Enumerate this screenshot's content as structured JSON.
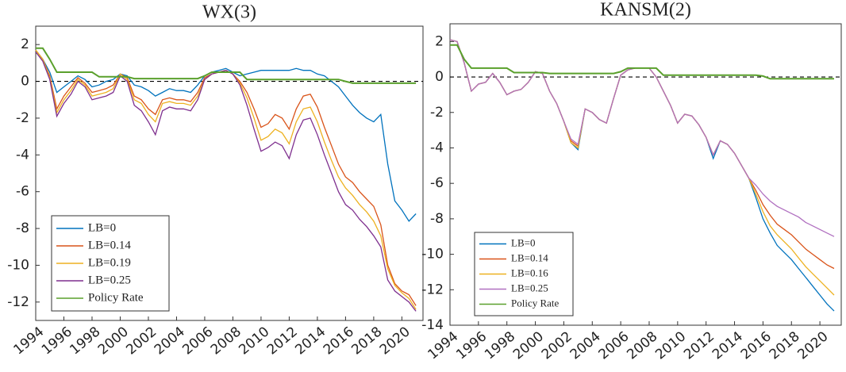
{
  "chart_data": [
    {
      "type": "line",
      "title": "WX(3)",
      "x": [
        1994,
        1994.5,
        1995,
        1995.5,
        1996,
        1996.5,
        1997,
        1997.5,
        1998,
        1998.5,
        1999,
        1999.5,
        2000,
        2000.5,
        2001,
        2001.5,
        2002,
        2002.5,
        2003,
        2003.5,
        2004,
        2004.5,
        2005,
        2005.5,
        2006,
        2006.5,
        2007,
        2007.5,
        2008,
        2008.5,
        2009,
        2009.5,
        2010,
        2010.5,
        2011,
        2011.5,
        2012,
        2012.5,
        2013,
        2013.5,
        2014,
        2014.5,
        2015,
        2015.5,
        2016,
        2016.5,
        2017,
        2017.5,
        2018,
        2018.5,
        2019,
        2019.5,
        2020,
        2020.5,
        2021
      ],
      "xlim": [
        1994,
        2021.5
      ],
      "xticks": [
        1994,
        1996,
        1998,
        2000,
        2002,
        2004,
        2006,
        2008,
        2010,
        2012,
        2014,
        2016,
        2018,
        2020
      ],
      "ylim": [
        -13,
        3
      ],
      "yticks": [
        -12,
        -10,
        -8,
        -6,
        -4,
        -2,
        0,
        2
      ],
      "legend": "lower left",
      "series": [
        {
          "name": "LB=0",
          "color": "#0072bd",
          "values": [
            1.7,
            1.2,
            0.5,
            -0.6,
            -0.3,
            0.0,
            0.3,
            0.1,
            -0.3,
            -0.2,
            0.0,
            0.1,
            0.4,
            0.3,
            -0.2,
            -0.3,
            -0.5,
            -0.8,
            -0.6,
            -0.4,
            -0.5,
            -0.5,
            -0.6,
            -0.2,
            0.3,
            0.5,
            0.6,
            0.7,
            0.5,
            0.3,
            0.4,
            0.5,
            0.6,
            0.6,
            0.6,
            0.6,
            0.6,
            0.7,
            0.6,
            0.6,
            0.4,
            0.3,
            0.0,
            -0.3,
            -0.8,
            -1.3,
            -1.7,
            -2.0,
            -2.2,
            -1.8,
            -4.5,
            -6.5,
            -7.0,
            -7.6,
            -7.2
          ]
        },
        {
          "name": "LB=0.14",
          "color": "#d95319",
          "values": [
            1.7,
            1.2,
            0.3,
            -1.5,
            -0.8,
            -0.3,
            0.2,
            -0.1,
            -0.6,
            -0.5,
            -0.4,
            -0.2,
            0.4,
            0.2,
            -0.8,
            -1.0,
            -1.5,
            -1.8,
            -1.0,
            -0.9,
            -1.0,
            -1.0,
            -1.1,
            -0.6,
            0.2,
            0.4,
            0.5,
            0.6,
            0.4,
            0.0,
            -0.6,
            -1.5,
            -2.5,
            -2.3,
            -1.8,
            -2.0,
            -2.6,
            -1.5,
            -0.8,
            -0.7,
            -1.4,
            -2.5,
            -3.5,
            -4.5,
            -5.2,
            -5.5,
            -6.0,
            -6.4,
            -6.8,
            -7.8,
            -10.0,
            -11.0,
            -11.4,
            -11.6,
            -12.2
          ]
        },
        {
          "name": "LB=0.19",
          "color": "#edb120",
          "values": [
            1.7,
            1.2,
            0.2,
            -1.7,
            -1.0,
            -0.5,
            0.1,
            -0.2,
            -0.8,
            -0.7,
            -0.6,
            -0.4,
            0.4,
            0.1,
            -1.0,
            -1.2,
            -1.8,
            -2.2,
            -1.2,
            -1.1,
            -1.2,
            -1.2,
            -1.3,
            -0.8,
            0.1,
            0.4,
            0.5,
            0.6,
            0.4,
            -0.1,
            -0.9,
            -2.0,
            -3.2,
            -3.0,
            -2.6,
            -2.8,
            -3.4,
            -2.2,
            -1.5,
            -1.4,
            -2.2,
            -3.3,
            -4.3,
            -5.2,
            -5.8,
            -6.2,
            -6.7,
            -7.1,
            -7.6,
            -8.4,
            -10.2,
            -11.1,
            -11.5,
            -11.8,
            -12.4
          ]
        },
        {
          "name": "LB=0.25",
          "color": "#7e2f8e",
          "values": [
            1.6,
            1.1,
            0.1,
            -1.9,
            -1.2,
            -0.7,
            0.0,
            -0.3,
            -1.0,
            -0.9,
            -0.8,
            -0.6,
            0.3,
            0.0,
            -1.3,
            -1.6,
            -2.2,
            -2.9,
            -1.6,
            -1.4,
            -1.5,
            -1.5,
            -1.6,
            -1.0,
            0.1,
            0.4,
            0.5,
            0.6,
            0.4,
            -0.2,
            -1.3,
            -2.6,
            -3.8,
            -3.6,
            -3.3,
            -3.5,
            -4.2,
            -2.9,
            -2.1,
            -2.0,
            -2.9,
            -4.0,
            -5.0,
            -6.0,
            -6.7,
            -7.0,
            -7.5,
            -7.9,
            -8.4,
            -9.0,
            -10.8,
            -11.4,
            -11.7,
            -12.0,
            -12.5
          ]
        },
        {
          "name": "Policy Rate",
          "color": "#5aa02c",
          "values": [
            1.8,
            1.8,
            1.2,
            0.5,
            0.5,
            0.5,
            0.5,
            0.5,
            0.5,
            0.25,
            0.25,
            0.25,
            0.25,
            0.25,
            0.15,
            0.15,
            0.15,
            0.15,
            0.15,
            0.15,
            0.15,
            0.15,
            0.15,
            0.15,
            0.3,
            0.5,
            0.5,
            0.5,
            0.5,
            0.5,
            0.1,
            0.1,
            0.1,
            0.1,
            0.1,
            0.1,
            0.1,
            0.1,
            0.1,
            0.1,
            0.1,
            0.1,
            0.1,
            0.1,
            0.0,
            -0.1,
            -0.1,
            -0.1,
            -0.1,
            -0.1,
            -0.1,
            -0.1,
            -0.1,
            -0.1,
            -0.1
          ]
        }
      ]
    },
    {
      "type": "line",
      "title": "KANSM(2)",
      "x": [
        1994,
        1994.5,
        1995,
        1995.5,
        1996,
        1996.5,
        1997,
        1997.5,
        1998,
        1998.5,
        1999,
        1999.5,
        2000,
        2000.5,
        2001,
        2001.5,
        2002,
        2002.5,
        2003,
        2003.5,
        2004,
        2004.5,
        2005,
        2005.5,
        2006,
        2006.5,
        2007,
        2007.5,
        2008,
        2008.5,
        2009,
        2009.5,
        2010,
        2010.5,
        2011,
        2011.5,
        2012,
        2012.5,
        2013,
        2013.5,
        2014,
        2014.5,
        2015,
        2015.5,
        2016,
        2016.5,
        2017,
        2017.5,
        2018,
        2018.5,
        2019,
        2019.5,
        2020,
        2020.5,
        2021
      ],
      "xlim": [
        1994,
        2021.5
      ],
      "xticks": [
        1994,
        1996,
        1998,
        2000,
        2002,
        2004,
        2006,
        2008,
        2010,
        2012,
        2014,
        2016,
        2018,
        2020
      ],
      "ylim": [
        -14,
        3
      ],
      "yticks": [
        -14,
        -12,
        -10,
        -8,
        -6,
        -4,
        -2,
        0,
        2
      ],
      "legend": "lower left",
      "series": [
        {
          "name": "LB=0",
          "color": "#0072bd",
          "values": [
            2.1,
            2.0,
            0.8,
            -0.8,
            -0.4,
            -0.3,
            0.2,
            -0.3,
            -1.0,
            -0.8,
            -0.7,
            -0.3,
            0.3,
            0.2,
            -0.8,
            -1.5,
            -2.5,
            -3.7,
            -4.1,
            -1.8,
            -2.0,
            -2.4,
            -2.6,
            -1.2,
            0.1,
            0.4,
            0.5,
            0.5,
            0.5,
            0.0,
            -0.8,
            -1.6,
            -2.6,
            -2.1,
            -2.2,
            -2.7,
            -3.4,
            -4.6,
            -3.6,
            -3.8,
            -4.3,
            -5.0,
            -5.7,
            -6.8,
            -8.0,
            -8.8,
            -9.5,
            -9.9,
            -10.3,
            -10.8,
            -11.3,
            -11.8,
            -12.3,
            -12.8,
            -13.2
          ]
        },
        {
          "name": "LB=0.14",
          "color": "#d95319",
          "values": [
            2.1,
            2.0,
            0.8,
            -0.8,
            -0.4,
            -0.3,
            0.2,
            -0.3,
            -1.0,
            -0.8,
            -0.7,
            -0.3,
            0.3,
            0.2,
            -0.8,
            -1.5,
            -2.5,
            -3.6,
            -3.9,
            -1.8,
            -2.0,
            -2.4,
            -2.6,
            -1.2,
            0.1,
            0.4,
            0.5,
            0.5,
            0.5,
            0.0,
            -0.8,
            -1.6,
            -2.6,
            -2.1,
            -2.2,
            -2.7,
            -3.4,
            -4.4,
            -3.6,
            -3.8,
            -4.3,
            -5.0,
            -5.7,
            -6.4,
            -7.2,
            -7.8,
            -8.3,
            -8.6,
            -8.9,
            -9.3,
            -9.7,
            -10.0,
            -10.3,
            -10.6,
            -10.8
          ]
        },
        {
          "name": "LB=0.16",
          "color": "#edb120",
          "values": [
            2.1,
            2.0,
            0.8,
            -0.8,
            -0.4,
            -0.3,
            0.2,
            -0.3,
            -1.0,
            -0.8,
            -0.7,
            -0.3,
            0.3,
            0.2,
            -0.8,
            -1.5,
            -2.5,
            -3.7,
            -4.0,
            -1.8,
            -2.0,
            -2.4,
            -2.6,
            -1.2,
            0.1,
            0.4,
            0.5,
            0.5,
            0.5,
            0.0,
            -0.8,
            -1.6,
            -2.6,
            -2.1,
            -2.2,
            -2.7,
            -3.4,
            -4.4,
            -3.6,
            -3.8,
            -4.3,
            -5.0,
            -5.7,
            -6.6,
            -7.6,
            -8.4,
            -8.9,
            -9.3,
            -9.7,
            -10.2,
            -10.7,
            -11.1,
            -11.5,
            -11.9,
            -12.3
          ]
        },
        {
          "name": "LB=0.25",
          "color": "#b070c0",
          "values": [
            2.1,
            2.0,
            0.8,
            -0.8,
            -0.4,
            -0.3,
            0.2,
            -0.3,
            -1.0,
            -0.8,
            -0.7,
            -0.3,
            0.3,
            0.2,
            -0.8,
            -1.5,
            -2.5,
            -3.5,
            -3.8,
            -1.8,
            -2.0,
            -2.4,
            -2.6,
            -1.2,
            0.1,
            0.4,
            0.5,
            0.5,
            0.5,
            0.0,
            -0.8,
            -1.6,
            -2.6,
            -2.1,
            -2.2,
            -2.7,
            -3.4,
            -4.4,
            -3.6,
            -3.8,
            -4.3,
            -5.0,
            -5.7,
            -6.1,
            -6.6,
            -7.0,
            -7.3,
            -7.5,
            -7.7,
            -7.9,
            -8.2,
            -8.4,
            -8.6,
            -8.8,
            -9.0
          ]
        },
        {
          "name": "Policy Rate",
          "color": "#5aa02c",
          "values": [
            1.8,
            1.8,
            1.0,
            0.5,
            0.5,
            0.5,
            0.5,
            0.5,
            0.5,
            0.25,
            0.25,
            0.25,
            0.25,
            0.25,
            0.2,
            0.2,
            0.2,
            0.2,
            0.2,
            0.2,
            0.2,
            0.2,
            0.2,
            0.2,
            0.3,
            0.5,
            0.5,
            0.5,
            0.5,
            0.5,
            0.1,
            0.1,
            0.1,
            0.1,
            0.1,
            0.1,
            0.1,
            0.1,
            0.1,
            0.1,
            0.1,
            0.1,
            0.1,
            0.1,
            0.05,
            -0.1,
            -0.1,
            -0.1,
            -0.1,
            -0.1,
            -0.1,
            -0.1,
            -0.1,
            -0.1,
            -0.1
          ]
        }
      ]
    }
  ]
}
